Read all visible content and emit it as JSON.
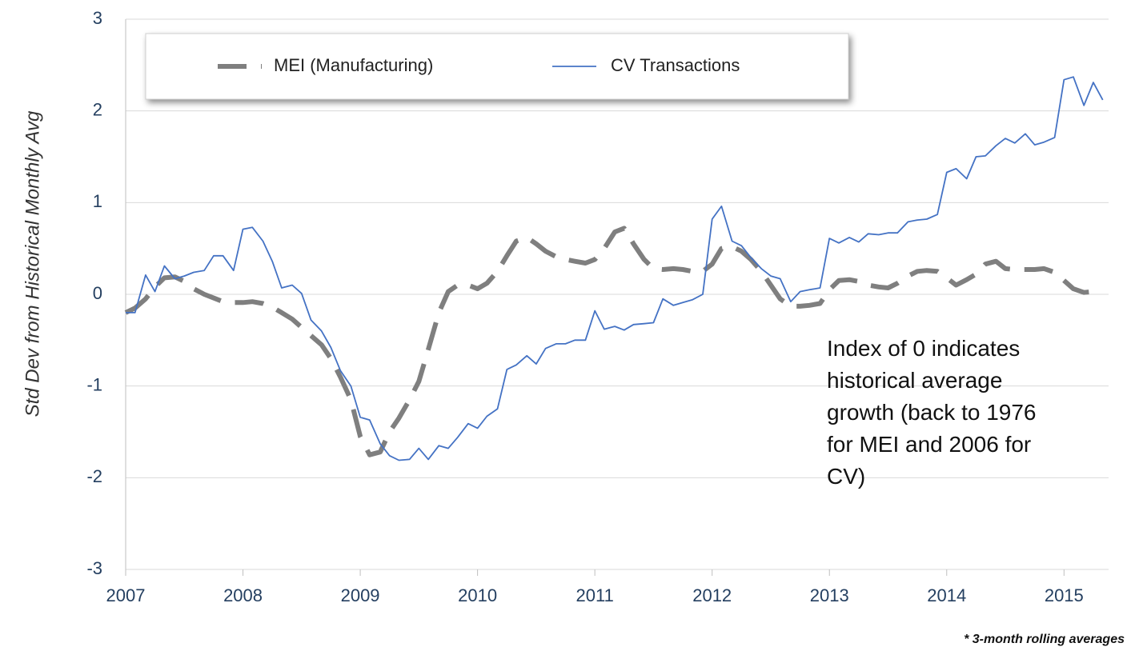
{
  "chart_data": {
    "type": "line",
    "y_axis_label": "Std Dev from Historical Monthly Avg",
    "annotation": "Index of 0 indicates historical average growth (back to 1976 for MEI and 2006 for CV)",
    "footnote": "* 3-month rolling averages",
    "legend_position": "upper left",
    "grid": true,
    "xlim": [
      2007,
      2015.38
    ],
    "xticks": [
      2007,
      2008,
      2009,
      2010,
      2011,
      2012,
      2013,
      2014,
      2015
    ],
    "ylim": [
      -3,
      3
    ],
    "yticks": [
      -3,
      -2,
      -1,
      0,
      1,
      2,
      3
    ],
    "x": [
      2007.0,
      2007.08,
      2007.17,
      2007.25,
      2007.33,
      2007.42,
      2007.5,
      2007.58,
      2007.67,
      2007.75,
      2007.83,
      2007.92,
      2008.0,
      2008.08,
      2008.17,
      2008.25,
      2008.33,
      2008.42,
      2008.5,
      2008.58,
      2008.67,
      2008.75,
      2008.83,
      2008.92,
      2009.0,
      2009.08,
      2009.17,
      2009.25,
      2009.33,
      2009.42,
      2009.5,
      2009.58,
      2009.67,
      2009.75,
      2009.83,
      2009.92,
      2010.0,
      2010.08,
      2010.17,
      2010.25,
      2010.33,
      2010.42,
      2010.5,
      2010.58,
      2010.67,
      2010.75,
      2010.83,
      2010.92,
      2011.0,
      2011.08,
      2011.17,
      2011.25,
      2011.33,
      2011.42,
      2011.5,
      2011.58,
      2011.67,
      2011.75,
      2011.83,
      2011.92,
      2012.0,
      2012.08,
      2012.17,
      2012.25,
      2012.33,
      2012.42,
      2012.5,
      2012.58,
      2012.67,
      2012.75,
      2012.83,
      2012.92,
      2013.0,
      2013.08,
      2013.17,
      2013.25,
      2013.33,
      2013.42,
      2013.5,
      2013.58,
      2013.67,
      2013.75,
      2013.83,
      2013.92,
      2014.0,
      2014.08,
      2014.17,
      2014.25,
      2014.33,
      2014.42,
      2014.5,
      2014.58,
      2014.67,
      2014.75,
      2014.83,
      2014.92,
      2015.0,
      2015.08,
      2015.17,
      2015.25,
      2015.33
    ],
    "series": [
      {
        "name": "MEI (Manufacturing)",
        "color": "#7f7f7f",
        "dashed": true,
        "values": [
          -0.2,
          -0.15,
          -0.05,
          0.08,
          0.18,
          0.19,
          0.14,
          0.06,
          0.0,
          -0.04,
          -0.08,
          -0.09,
          -0.09,
          -0.08,
          -0.1,
          -0.14,
          -0.2,
          -0.27,
          -0.36,
          -0.45,
          -0.55,
          -0.7,
          -0.9,
          -1.15,
          -1.55,
          -1.75,
          -1.72,
          -1.5,
          -1.35,
          -1.15,
          -0.95,
          -0.6,
          -0.2,
          0.03,
          0.1,
          0.1,
          0.06,
          0.12,
          0.25,
          0.42,
          0.58,
          0.62,
          0.55,
          0.47,
          0.41,
          0.38,
          0.36,
          0.34,
          0.38,
          0.5,
          0.68,
          0.72,
          0.55,
          0.38,
          0.28,
          0.27,
          0.28,
          0.27,
          0.25,
          0.25,
          0.33,
          0.5,
          0.52,
          0.47,
          0.38,
          0.25,
          0.1,
          -0.05,
          -0.13,
          -0.13,
          -0.12,
          -0.1,
          0.05,
          0.15,
          0.16,
          0.14,
          0.1,
          0.08,
          0.07,
          0.12,
          0.2,
          0.25,
          0.26,
          0.25,
          0.18,
          0.1,
          0.16,
          0.22,
          0.33,
          0.36,
          0.28,
          0.27,
          0.27,
          0.27,
          0.28,
          0.24,
          0.15,
          0.06,
          0.02,
          0.03,
          0.05
        ]
      },
      {
        "name": "CV Transactions",
        "color": "#4472c4",
        "dashed": false,
        "values": [
          -0.2,
          -0.2,
          0.21,
          0.03,
          0.31,
          0.17,
          0.2,
          0.24,
          0.26,
          0.42,
          0.42,
          0.26,
          0.71,
          0.73,
          0.58,
          0.36,
          0.07,
          0.1,
          0.01,
          -0.28,
          -0.4,
          -0.58,
          -0.83,
          -1.0,
          -1.34,
          -1.37,
          -1.63,
          -1.76,
          -1.81,
          -1.8,
          -1.68,
          -1.8,
          -1.65,
          -1.68,
          -1.56,
          -1.41,
          -1.46,
          -1.33,
          -1.25,
          -0.82,
          -0.77,
          -0.67,
          -0.76,
          -0.59,
          -0.54,
          -0.54,
          -0.5,
          -0.5,
          -0.18,
          -0.38,
          -0.35,
          -0.39,
          -0.33,
          -0.32,
          -0.31,
          -0.05,
          -0.12,
          -0.09,
          -0.06,
          0.0,
          0.82,
          0.96,
          0.58,
          0.53,
          0.4,
          0.28,
          0.2,
          0.17,
          -0.08,
          0.03,
          0.05,
          0.07,
          0.61,
          0.56,
          0.62,
          0.57,
          0.66,
          0.65,
          0.67,
          0.67,
          0.79,
          0.81,
          0.82,
          0.87,
          1.33,
          1.37,
          1.26,
          1.5,
          1.51,
          1.62,
          1.7,
          1.65,
          1.75,
          1.63,
          1.66,
          1.71,
          2.34,
          2.37,
          2.06,
          2.31,
          2.12
        ]
      }
    ]
  }
}
